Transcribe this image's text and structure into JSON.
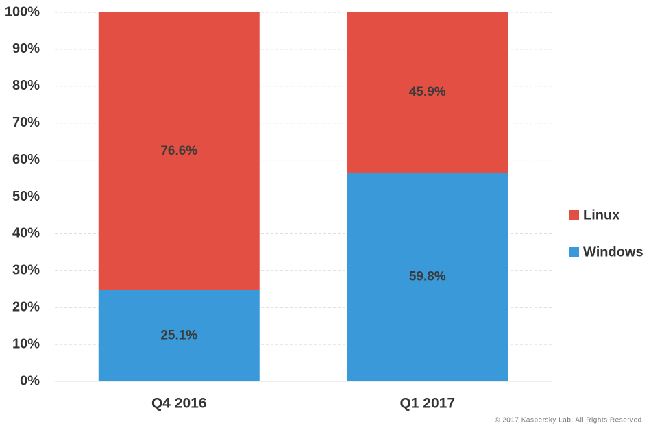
{
  "chart_data": {
    "type": "bar",
    "stacking": "percent",
    "categories": [
      "Q4 2016",
      "Q1 2017"
    ],
    "series": [
      {
        "name": "Windows",
        "color": "#3a9ad9",
        "values": [
          25.1,
          59.8
        ],
        "value_labels": [
          "25.1%",
          "59.8%"
        ]
      },
      {
        "name": "Linux",
        "color": "#e44f43",
        "values": [
          76.6,
          45.9
        ],
        "value_labels": [
          "76.6%",
          "45.9%"
        ]
      }
    ],
    "ylim": [
      0,
      100
    ],
    "yticks": [
      {
        "value": 0,
        "label": "0%"
      },
      {
        "value": 10,
        "label": "10%"
      },
      {
        "value": 20,
        "label": "20%"
      },
      {
        "value": 30,
        "label": "30%"
      },
      {
        "value": 40,
        "label": "40%"
      },
      {
        "value": 50,
        "label": "50%"
      },
      {
        "value": 60,
        "label": "60%"
      },
      {
        "value": 70,
        "label": "70%"
      },
      {
        "value": 80,
        "label": "80%"
      },
      {
        "value": 90,
        "label": "90%"
      },
      {
        "value": 100,
        "label": "100%"
      }
    ],
    "grid": true,
    "legend": "right",
    "footer": "© 2017 Kaspersky Lab. All Rights Reserved."
  }
}
